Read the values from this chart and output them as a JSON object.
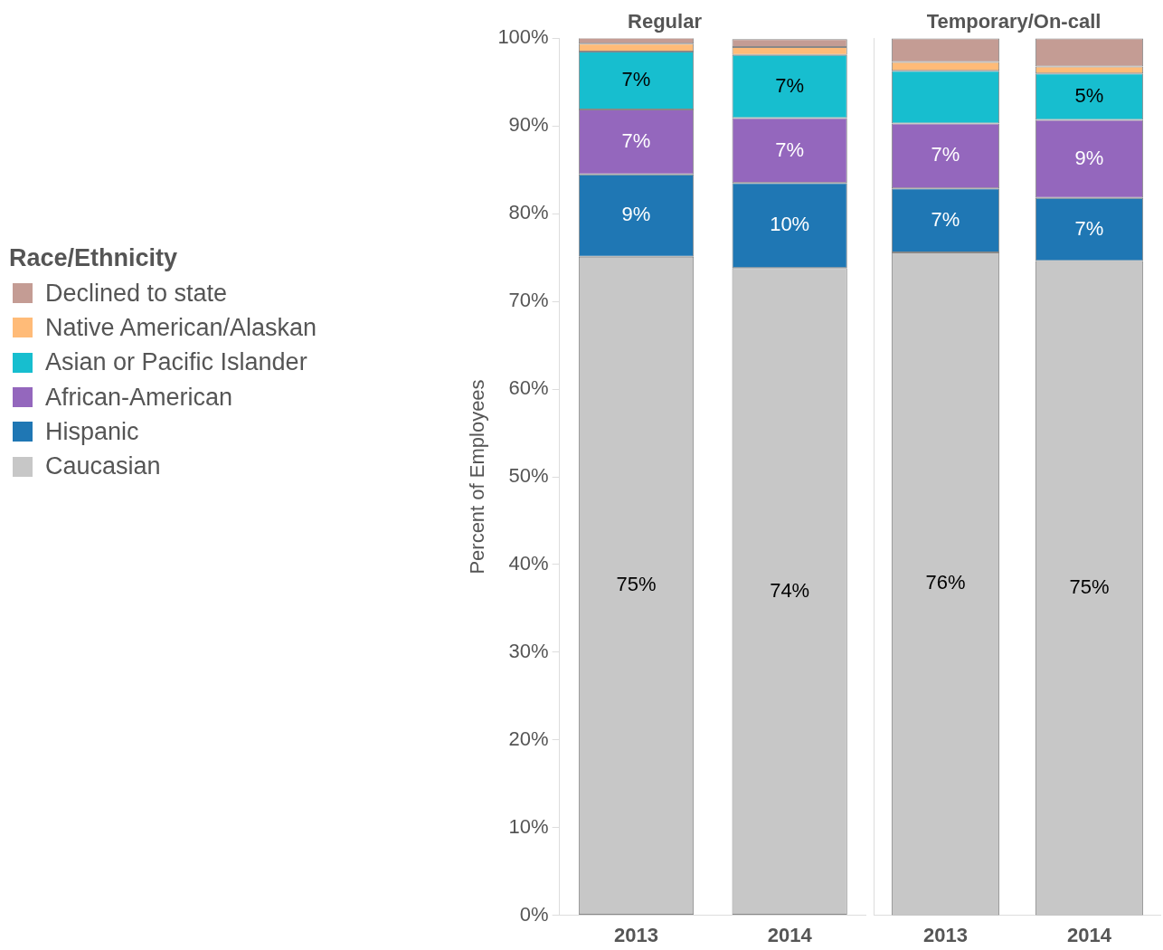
{
  "chart_data": [
    {
      "type": "bar",
      "title": "Regular",
      "categories": [
        "2013",
        "2014"
      ],
      "stacked": true,
      "ylabel": "Percent of Employees",
      "legend": "left",
      "legend_title": "Race/Ethnicity",
      "ylim": [
        0,
        100
      ],
      "yticks": [
        {
          "value": 0,
          "label": "0%"
        },
        {
          "value": 10,
          "label": "10%"
        },
        {
          "value": 20,
          "label": "20%"
        },
        {
          "value": 30,
          "label": "30%"
        },
        {
          "value": 40,
          "label": "40%"
        },
        {
          "value": 50,
          "label": "50%"
        },
        {
          "value": 60,
          "label": "60%"
        },
        {
          "value": 70,
          "label": "70%"
        },
        {
          "value": 80,
          "label": "80%"
        },
        {
          "value": 90,
          "label": "90%"
        },
        {
          "value": 100,
          "label": "100%"
        }
      ],
      "series": [
        {
          "name": "Caucasian",
          "color": "#c7c7c7",
          "values": [
            75.1,
            73.8
          ],
          "value_labels": [
            "75%",
            "74%"
          ]
        },
        {
          "name": "Hispanic",
          "color": "#1f77b4",
          "values": [
            9.4,
            9.7
          ],
          "value_labels": [
            "9%",
            "10%"
          ]
        },
        {
          "name": "African-American",
          "color": "#9467bd",
          "values": [
            7.4,
            7.4
          ],
          "value_labels": [
            "7%",
            "7%"
          ]
        },
        {
          "name": "Asian or Pacific Islander",
          "color": "#17becf",
          "values": [
            6.6,
            7.2
          ],
          "value_labels": [
            "7%",
            "7%"
          ]
        },
        {
          "name": "Native American/Alaskan",
          "color": "#ffbb78",
          "values": [
            0.9,
            0.9
          ]
        },
        {
          "name": "Declined to state",
          "color": "#c49c94",
          "values": [
            0.7,
            0.9
          ]
        }
      ]
    },
    {
      "type": "bar",
      "title": "Temporary/On-call",
      "categories": [
        "2013",
        "2014"
      ],
      "stacked": true,
      "tick_labels": "x",
      "ylim": [
        0,
        100
      ],
      "series": [
        {
          "color": "#c7c7c7",
          "values": [
            75.6,
            74.6
          ],
          "value_labels": [
            "76%",
            "75%"
          ]
        },
        {
          "color": "#1f77b4",
          "values": [
            7.3,
            7.2
          ],
          "value_labels": [
            "7%",
            "7%"
          ]
        },
        {
          "color": "#9467bd",
          "values": [
            7.4,
            8.9
          ],
          "value_labels": [
            "7%",
            "9%"
          ]
        },
        {
          "color": "#17becf",
          "values": [
            6.0,
            5.3
          ],
          "value_labels": [
            null,
            "5%"
          ]
        },
        {
          "color": "#ffbb78",
          "values": [
            1.0,
            0.8
          ]
        },
        {
          "color": "#c49c94",
          "values": [
            2.7,
            3.2
          ]
        }
      ]
    }
  ]
}
